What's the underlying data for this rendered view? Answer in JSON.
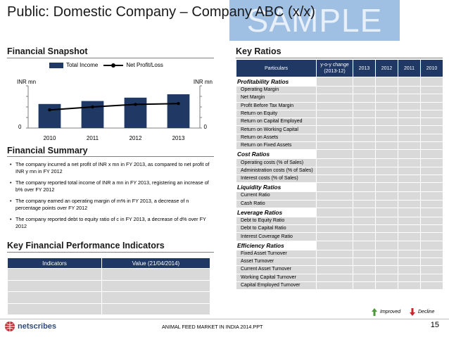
{
  "title": "Public: Domestic Company – Company ABC (x/x)",
  "watermark": "SAMPLE",
  "snapshot": {
    "heading": "Financial Snapshot",
    "legend_bar": "Total Income",
    "legend_line": "Net Profit/Loss",
    "unit_left": "INR mn",
    "unit_right": "INR mn",
    "zero_left": "0",
    "zero_right": "0"
  },
  "chart_data": {
    "type": "bar",
    "title": "",
    "categories": [
      "2010",
      "2011",
      "2012",
      "2013"
    ],
    "series": [
      {
        "name": "Total Income",
        "kind": "bar",
        "values": [
          57,
          64,
          72,
          80
        ]
      },
      {
        "name": "Net Profit/Loss",
        "kind": "line",
        "values": [
          43,
          50,
          56,
          58
        ]
      }
    ],
    "ylim": [
      0,
      100
    ],
    "xlabel": "",
    "ylabel": "INR mn",
    "y2label": "INR mn",
    "colors": {
      "bar": "#1f3864",
      "line": "#000000"
    }
  },
  "summary": {
    "heading": "Financial Summary",
    "bullets": [
      "The company incurred a net profit of INR x mn in FY 2013, as compared to net profit of INR y mn in FY 2012",
      "The company reported total income of INR a mn in FY 2013, registering an increase of b% over FY 2012",
      "The company earned an operating margin of m% in FY 2013, a decrease of n percentage points over FY 2012",
      "The company reported debt to equity ratio of c in FY 2013, a decrease of d% over FY 2012"
    ]
  },
  "kpi": {
    "heading": "Key Financial Performance Indicators",
    "col1": "Indicators",
    "col2": "Value (21/04/2014)"
  },
  "ratios": {
    "heading": "Key Ratios",
    "headers": [
      "Particulars",
      "y-o-y change (2013-12)",
      "2013",
      "2012",
      "2011",
      "2010"
    ],
    "groups": [
      {
        "name": "Profitability Ratios",
        "items": [
          "Operating Margin",
          "Net Margin",
          "Profit Before Tax Margin",
          "Return on Equity",
          "Return on Capital Employed",
          "Return on Working Capital",
          "Return on Assets",
          "Return on Fixed Assets"
        ]
      },
      {
        "name": "Cost Ratios",
        "items": [
          "Operating costs (% of Sales)",
          "Administration costs (% of Sales)",
          "Interest costs (% of Sales)"
        ]
      },
      {
        "name": "Liquidity Ratios",
        "items": [
          "Current Ratio",
          "Cash Ratio"
        ]
      },
      {
        "name": "Leverage Ratios",
        "items": [
          "Debt to Equity Ratio",
          "Debt to Capital Ratio",
          "Interest Coverage Ratio"
        ]
      },
      {
        "name": "Efficiency Ratios",
        "items": [
          "Fixed Asset Turnover",
          "Asset Turnover",
          "Current Asset Turnover",
          "Working Capital Turnover",
          "Capital Employed Turnover"
        ]
      }
    ],
    "legend_improved": "Improved",
    "legend_decline": "Decline",
    "color_improved": "#4e9a3a",
    "color_decline": "#c0282d"
  },
  "footer": {
    "logo": "netscribes",
    "center": "ANIMAL FEED MARKET IN INDIA 2014.PPT",
    "page": "15"
  }
}
